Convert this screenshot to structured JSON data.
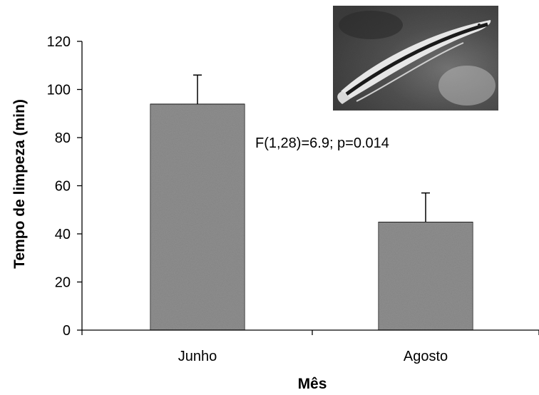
{
  "chart_data": {
    "type": "bar",
    "categories": [
      "Junho",
      "Agosto"
    ],
    "values": [
      94,
      45
    ],
    "errors": [
      12,
      12
    ],
    "xlabel": "Mês",
    "ylabel": "Tempo de limpeza (min)",
    "ylim": [
      0,
      120
    ],
    "yticks": [
      0,
      20,
      40,
      60,
      80,
      100,
      120
    ],
    "annotation": "F(1,28)=6.9; p=0.014",
    "grid": false,
    "bar_color": "#8f8f8f",
    "inset_image": "cleaner-fish-photo"
  }
}
